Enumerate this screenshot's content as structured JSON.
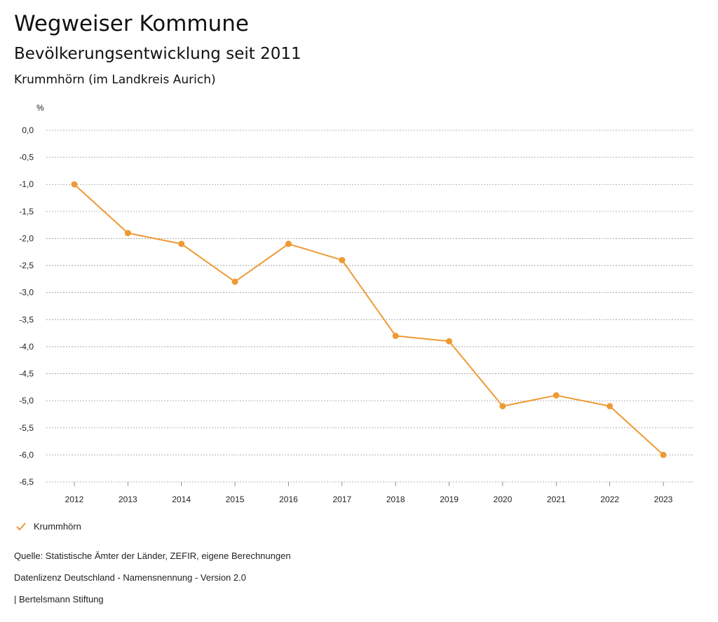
{
  "header": {
    "title": "Wegweiser Kommune",
    "subtitle": "Bevölkerungsentwicklung seit 2011",
    "region": "Krummhörn (im Landkreis Aurich)"
  },
  "chart_data": {
    "type": "line",
    "title": "Bevölkerungsentwicklung seit 2011",
    "ylabel": "%",
    "xlabel": "",
    "ylim": [
      -6.5,
      0
    ],
    "yticks": [
      0,
      -0.5,
      -1,
      -1.5,
      -2,
      -2.5,
      -3,
      -3.5,
      -4,
      -4.5,
      -5,
      -5.5,
      -6,
      -6.5
    ],
    "ytick_labels": [
      "0,0",
      "-0,5",
      "-1,0",
      "-1,5",
      "-2,0",
      "-2,5",
      "-3,0",
      "-3,5",
      "-4,0",
      "-4,5",
      "-5,0",
      "-5,5",
      "-6,0",
      "-6,5"
    ],
    "categories": [
      "2012",
      "2013",
      "2014",
      "2015",
      "2016",
      "2017",
      "2018",
      "2019",
      "2020",
      "2021",
      "2022",
      "2023"
    ],
    "series": [
      {
        "name": "Krummhörn",
        "color": "#ee9a34",
        "values": [
          -1.0,
          -1.9,
          -2.1,
          -2.8,
          -2.1,
          -2.4,
          -3.8,
          -3.9,
          -5.1,
          -4.9,
          -5.1,
          -6.0
        ]
      }
    ],
    "grid": true,
    "legend": "bottom-left"
  },
  "legend": {
    "label": "Krummhörn",
    "color": "#ee9a34",
    "icon": "checkmark-icon"
  },
  "footer": {
    "source": "Quelle: Statistische Ämter der Länder, ZEFIR, eigene Berechnungen",
    "license": "Datenlizenz Deutschland - Namensnennung - Version 2.0",
    "brand": "| Bertelsmann Stiftung"
  }
}
